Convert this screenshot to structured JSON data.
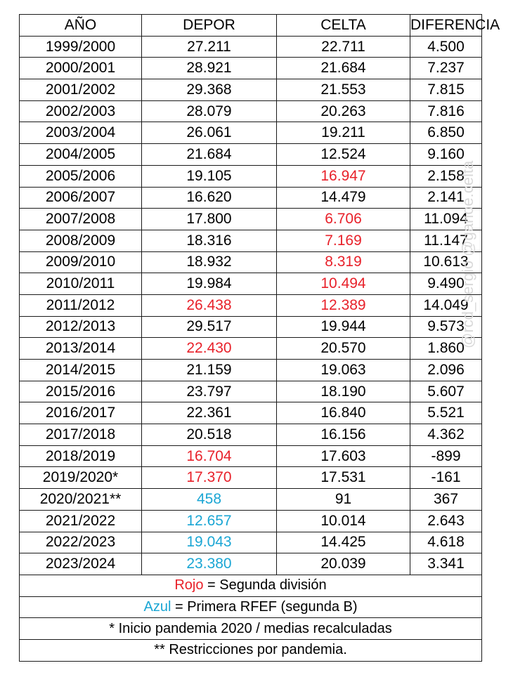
{
  "headers": [
    "AÑO",
    "DEPOR",
    "CELTA",
    "DIFERENCIA"
  ],
  "colors": {
    "red": "#e8212a",
    "blue": "#1aa6d4"
  },
  "rows": [
    {
      "year": "1999/2000",
      "depor": "27.211",
      "celta": "22.711",
      "diff": "4.500",
      "depor_color": "",
      "celta_color": ""
    },
    {
      "year": "2000/2001",
      "depor": "28.921",
      "celta": "21.684",
      "diff": "7.237",
      "depor_color": "",
      "celta_color": ""
    },
    {
      "year": "2001/2002",
      "depor": "29.368",
      "celta": "21.553",
      "diff": "7.815",
      "depor_color": "",
      "celta_color": ""
    },
    {
      "year": "2002/2003",
      "depor": "28.079",
      "celta": "20.263",
      "diff": "7.816",
      "depor_color": "",
      "celta_color": ""
    },
    {
      "year": "2003/2004",
      "depor": "26.061",
      "celta": "19.211",
      "diff": "6.850",
      "depor_color": "",
      "celta_color": ""
    },
    {
      "year": "2004/2005",
      "depor": "21.684",
      "celta": "12.524",
      "diff": "9.160",
      "depor_color": "",
      "celta_color": ""
    },
    {
      "year": "2005/2006",
      "depor": "19.105",
      "celta": "16.947",
      "diff": "2.158",
      "depor_color": "",
      "celta_color": "red"
    },
    {
      "year": "2006/2007",
      "depor": "16.620",
      "celta": "14.479",
      "diff": "2.141",
      "depor_color": "",
      "celta_color": ""
    },
    {
      "year": "2007/2008",
      "depor": "17.800",
      "celta": "6.706",
      "diff": "11.094",
      "depor_color": "",
      "celta_color": "red"
    },
    {
      "year": "2008/2009",
      "depor": "18.316",
      "celta": "7.169",
      "diff": "11.147",
      "depor_color": "",
      "celta_color": "red"
    },
    {
      "year": "2009/2010",
      "depor": "18.932",
      "celta": "8.319",
      "diff": "10.613",
      "depor_color": "",
      "celta_color": "red"
    },
    {
      "year": "2010/2011",
      "depor": "19.984",
      "celta": "10.494",
      "diff": "9.490",
      "depor_color": "",
      "celta_color": "red"
    },
    {
      "year": "2011/2012",
      "depor": "26.438",
      "celta": "12.389",
      "diff": "14.049",
      "depor_color": "red",
      "celta_color": "red"
    },
    {
      "year": "2012/2013",
      "depor": "29.517",
      "celta": "19.944",
      "diff": "9.573",
      "depor_color": "",
      "celta_color": ""
    },
    {
      "year": "2013/2014",
      "depor": "22.430",
      "celta": "20.570",
      "diff": "1.860",
      "depor_color": "red",
      "celta_color": ""
    },
    {
      "year": "2014/2015",
      "depor": "21.159",
      "celta": "19.063",
      "diff": "2.096",
      "depor_color": "",
      "celta_color": ""
    },
    {
      "year": "2015/2016",
      "depor": "23.797",
      "celta": "18.190",
      "diff": "5.607",
      "depor_color": "",
      "celta_color": ""
    },
    {
      "year": "2016/2017",
      "depor": "22.361",
      "celta": "16.840",
      "diff": "5.521",
      "depor_color": "",
      "celta_color": ""
    },
    {
      "year": "2017/2018",
      "depor": "20.518",
      "celta": "16.156",
      "diff": "4.362",
      "depor_color": "",
      "celta_color": ""
    },
    {
      "year": "2018/2019",
      "depor": "16.704",
      "celta": "17.603",
      "diff": "-899",
      "depor_color": "red",
      "celta_color": ""
    },
    {
      "year": "2019/2020*",
      "depor": "17.370",
      "celta": "17.531",
      "diff": "-161",
      "depor_color": "red",
      "celta_color": ""
    },
    {
      "year": "2020/2021**",
      "depor": "458",
      "celta": "91",
      "diff": "367",
      "depor_color": "blue",
      "celta_color": ""
    },
    {
      "year": "2021/2022",
      "depor": "12.657",
      "celta": "10.014",
      "diff": "2.643",
      "depor_color": "blue",
      "celta_color": ""
    },
    {
      "year": "2022/2023",
      "depor": "19.043",
      "celta": "14.425",
      "diff": "4.618",
      "depor_color": "blue",
      "celta_color": ""
    },
    {
      "year": "2023/2024",
      "depor": "23.380",
      "celta": "20.039",
      "diff": "3.341",
      "depor_color": "blue",
      "celta_color": ""
    }
  ],
  "legend": {
    "red_word": "Rojo",
    "red_rest": " = Segunda división",
    "blue_word": "Azul",
    "blue_rest": " = Primera RFEF (segunda B)",
    "note1": "* Inicio pandemia 2020 / medias recalculadas",
    "note2": "** Restricciones por pandemia."
  },
  "watermark": "@rcd_sergio @ganoe.celta"
}
